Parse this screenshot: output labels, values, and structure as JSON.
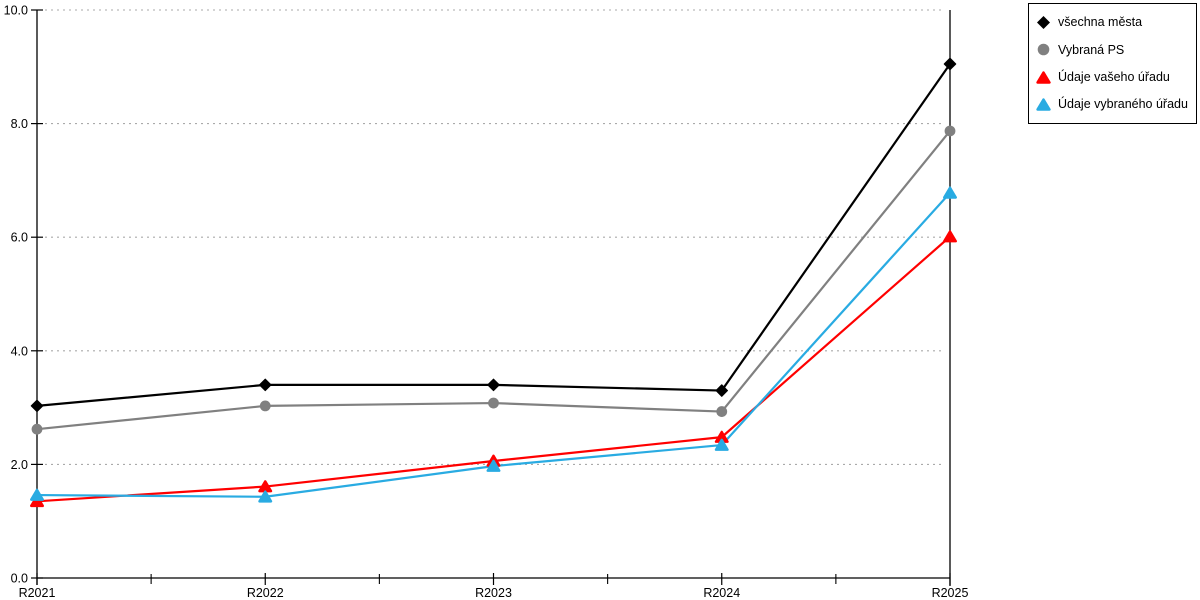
{
  "chart_data": {
    "type": "line",
    "title": "",
    "xlabel": "",
    "ylabel": "",
    "x_categories": [
      "R2021",
      "R2022",
      "R2023",
      "R2024",
      "R2025"
    ],
    "y_tick_labels": [
      "0.0",
      "2.0",
      "4.0",
      "6.0",
      "8.0",
      "10.0"
    ],
    "y_tick_values": [
      0,
      2,
      4,
      6,
      8,
      10
    ],
    "ylim": [
      0,
      10
    ],
    "y_tick_step": 2,
    "grid": "horizontal-dotted",
    "grid_color": "#aaaaaa",
    "axis_color": "#000000",
    "legend_position": "top-right",
    "series": [
      {
        "name": "všechna města",
        "color": "#000000",
        "marker": "diamond",
        "values": [
          3.03,
          3.4,
          3.4,
          3.3,
          9.05
        ]
      },
      {
        "name": "Vybraná PS",
        "color": "#808080",
        "marker": "circle",
        "values": [
          2.62,
          3.03,
          3.08,
          2.93,
          7.87
        ]
      },
      {
        "name": "Údaje vašeho úřadu",
        "color": "#ff0000",
        "marker": "triangle",
        "values": [
          1.35,
          1.61,
          2.06,
          2.48,
          6.01
        ]
      },
      {
        "name": "Údaje vybraného úřadu",
        "color": "#29abe2",
        "marker": "triangle",
        "values": [
          1.46,
          1.43,
          1.97,
          2.34,
          6.78
        ]
      }
    ]
  }
}
